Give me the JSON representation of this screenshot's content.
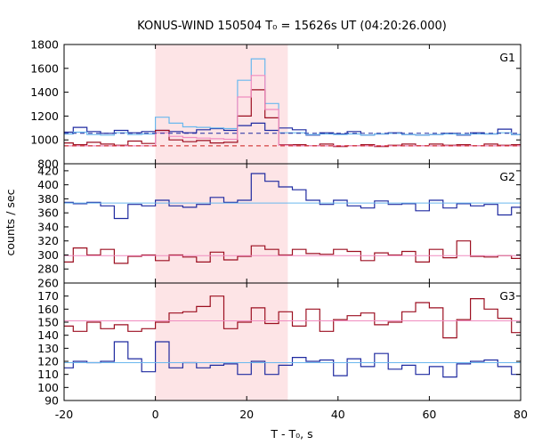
{
  "chart_data": {
    "type": "line",
    "title": "KONUS-WIND 150504 T₀ = 15626s UT (04:20:26.000)",
    "xlabel": "T - T₀, s",
    "ylabel": "counts / sec",
    "xlim": [
      -20,
      80
    ],
    "xticks": [
      "-20",
      "0",
      "20",
      "40",
      "60",
      "80"
    ],
    "highlight": {
      "x0": 0,
      "x1": 29,
      "color": "#fde4e6"
    },
    "series_colors": {
      "light_blue": "#6ab8ee",
      "blue": "#1f2aa0",
      "dark_red": "#9c0f20",
      "pink": "#f08cc0",
      "red": "#cc1a1a"
    },
    "panels": [
      {
        "name": "G1",
        "ylim": [
          800,
          1800
        ],
        "yticks": [
          "800",
          "1000",
          "1200",
          "1400",
          "1600",
          "1800"
        ],
        "series": [
          {
            "color": "#1f2aa0",
            "style": "step",
            "x": [
              -20,
              -18,
              -15,
              -12,
              -9,
              -6,
              -3,
              0,
              3,
              6,
              9,
              12,
              15,
              18,
              21,
              24,
              27,
              30,
              33,
              36,
              39,
              42,
              45,
              48,
              51,
              54,
              57,
              60,
              63,
              66,
              69,
              72,
              75,
              78,
              80
            ],
            "y": [
              1065,
              1105,
              1070,
              1055,
              1080,
              1060,
              1070,
              1080,
              1070,
              1060,
              1085,
              1095,
              1080,
              1120,
              1140,
              1080,
              1100,
              1085,
              1040,
              1060,
              1050,
              1070,
              1040,
              1050,
              1060,
              1045,
              1040,
              1045,
              1055,
              1040,
              1060,
              1050,
              1090,
              1045,
              1045
            ]
          },
          {
            "color": "#6ab8ee",
            "style": "step",
            "x": [
              -20,
              -18,
              -15,
              -12,
              -9,
              -6,
              -3,
              0,
              3,
              6,
              9,
              12,
              15,
              18,
              21,
              24,
              27,
              30,
              33,
              36,
              39,
              42,
              45,
              48,
              51,
              54,
              57,
              60,
              63,
              66,
              69,
              72,
              75,
              78,
              80
            ],
            "y": [
              1050,
              1065,
              1045,
              1040,
              1060,
              1045,
              1050,
              1190,
              1140,
              1110,
              1105,
              1100,
              1095,
              1500,
              1680,
              1305,
              1060,
              1060,
              1045,
              1050,
              1045,
              1050,
              1040,
              1050,
              1055,
              1045,
              1040,
              1045,
              1050,
              1045,
              1050,
              1050,
              1060,
              1045,
              1045
            ]
          },
          {
            "color": "#9c0f20",
            "style": "step",
            "x": [
              -20,
              -18,
              -15,
              -12,
              -9,
              -6,
              -3,
              0,
              3,
              6,
              9,
              12,
              15,
              18,
              21,
              24,
              27,
              30,
              33,
              36,
              39,
              42,
              45,
              48,
              51,
              54,
              57,
              60,
              63,
              66,
              69,
              72,
              75,
              78,
              80
            ],
            "y": [
              975,
              960,
              980,
              965,
              955,
              990,
              970,
              1080,
              1000,
              985,
              995,
              975,
              980,
              1200,
              1420,
              1185,
              960,
              960,
              950,
              965,
              945,
              950,
              960,
              945,
              955,
              965,
              950,
              965,
              955,
              960,
              950,
              965,
              955,
              960,
              960
            ]
          },
          {
            "color": "#f08cc0",
            "style": "step",
            "x": [
              -20,
              -18,
              -15,
              -12,
              -9,
              -6,
              -3,
              0,
              3,
              6,
              9,
              12,
              15,
              18,
              21,
              24,
              27,
              30,
              33,
              36,
              39,
              42,
              45,
              48,
              51,
              54,
              57,
              60,
              63,
              66,
              69,
              72,
              75,
              78,
              80
            ],
            "y": [
              950,
              950,
              950,
              950,
              950,
              950,
              950,
              1060,
              1030,
              1020,
              1015,
              1010,
              1005,
              1360,
              1540,
              1255,
              955,
              950,
              950,
              950,
              950,
              950,
              950,
              950,
              950,
              950,
              950,
              950,
              950,
              950,
              950,
              950,
              950,
              950,
              950
            ]
          },
          {
            "color": "#1f2aa0",
            "style": "dashed",
            "x": [
              -20,
              80
            ],
            "y": [
              1055,
              1055
            ]
          },
          {
            "color": "#cc1a1a",
            "style": "dashed",
            "x": [
              -20,
              80
            ],
            "y": [
              950,
              950
            ]
          }
        ]
      },
      {
        "name": "G2",
        "ylim": [
          260,
          430
        ],
        "yticks": [
          "260",
          "280",
          "300",
          "320",
          "340",
          "360",
          "380",
          "400",
          "420"
        ],
        "series": [
          {
            "color": "#1f2aa0",
            "style": "step",
            "x": [
              -20,
              -18,
              -15,
              -12,
              -9,
              -6,
              -3,
              0,
              3,
              6,
              9,
              12,
              15,
              18,
              21,
              24,
              27,
              30,
              33,
              36,
              39,
              42,
              45,
              48,
              51,
              54,
              57,
              60,
              63,
              66,
              69,
              72,
              75,
              78,
              80
            ],
            "y": [
              375,
              373,
              375,
              370,
              352,
              372,
              370,
              378,
              370,
              368,
              372,
              382,
              375,
              378,
              416,
              405,
              397,
              393,
              378,
              372,
              378,
              370,
              367,
              377,
              372,
              373,
              363,
              378,
              367,
              373,
              370,
              372,
              357,
              368,
              368
            ]
          },
          {
            "color": "#9c0f20",
            "style": "step",
            "x": [
              -20,
              -18,
              -15,
              -12,
              -9,
              -6,
              -3,
              0,
              3,
              6,
              9,
              12,
              15,
              18,
              21,
              24,
              27,
              30,
              33,
              36,
              39,
              42,
              45,
              48,
              51,
              54,
              57,
              60,
              63,
              66,
              69,
              72,
              75,
              78,
              80
            ],
            "y": [
              290,
              310,
              300,
              308,
              288,
              298,
              300,
              292,
              300,
              297,
              290,
              304,
              293,
              298,
              313,
              308,
              300,
              308,
              302,
              301,
              308,
              305,
              292,
              303,
              300,
              305,
              290,
              308,
              296,
              320,
              298,
              297,
              299,
              295,
              292
            ]
          },
          {
            "color": "#6ab8ee",
            "style": "solid",
            "x": [
              -20,
              80
            ],
            "y": [
              374,
              374
            ]
          },
          {
            "color": "#f08cc0",
            "style": "solid",
            "x": [
              -20,
              80
            ],
            "y": [
              299,
              299
            ]
          }
        ]
      },
      {
        "name": "G3",
        "ylim": [
          90,
          180
        ],
        "yticks": [
          "90",
          "100",
          "110",
          "120",
          "130",
          "140",
          "150",
          "160",
          "170"
        ],
        "series": [
          {
            "color": "#9c0f20",
            "style": "step",
            "x": [
              -20,
              -18,
              -15,
              -12,
              -9,
              -6,
              -3,
              0,
              3,
              6,
              9,
              12,
              15,
              18,
              21,
              24,
              27,
              30,
              33,
              36,
              39,
              42,
              45,
              48,
              51,
              54,
              57,
              60,
              63,
              66,
              69,
              72,
              75,
              78,
              80
            ],
            "y": [
              147,
              143,
              150,
              145,
              148,
              143,
              145,
              150,
              157,
              158,
              162,
              170,
              145,
              150,
              161,
              149,
              158,
              147,
              160,
              143,
              152,
              155,
              157,
              148,
              150,
              158,
              165,
              161,
              138,
              152,
              168,
              160,
              153,
              142,
              152
            ]
          },
          {
            "color": "#1f2aa0",
            "style": "step",
            "x": [
              -20,
              -18,
              -15,
              -12,
              -9,
              -6,
              -3,
              0,
              3,
              6,
              9,
              12,
              15,
              18,
              21,
              24,
              27,
              30,
              33,
              36,
              39,
              42,
              45,
              48,
              51,
              54,
              57,
              60,
              63,
              66,
              69,
              72,
              75,
              78,
              80
            ],
            "y": [
              115,
              120,
              119,
              120,
              135,
              122,
              112,
              135,
              115,
              119,
              115,
              117,
              118,
              110,
              120,
              110,
              117,
              123,
              120,
              121,
              109,
              122,
              116,
              126,
              114,
              117,
              110,
              116,
              108,
              118,
              120,
              121,
              116,
              110,
              110
            ]
          },
          {
            "color": "#f08cc0",
            "style": "solid",
            "x": [
              -20,
              80
            ],
            "y": [
              151,
              151
            ]
          },
          {
            "color": "#6ab8ee",
            "style": "solid",
            "x": [
              -20,
              80
            ],
            "y": [
              119,
              119
            ]
          }
        ]
      }
    ]
  }
}
